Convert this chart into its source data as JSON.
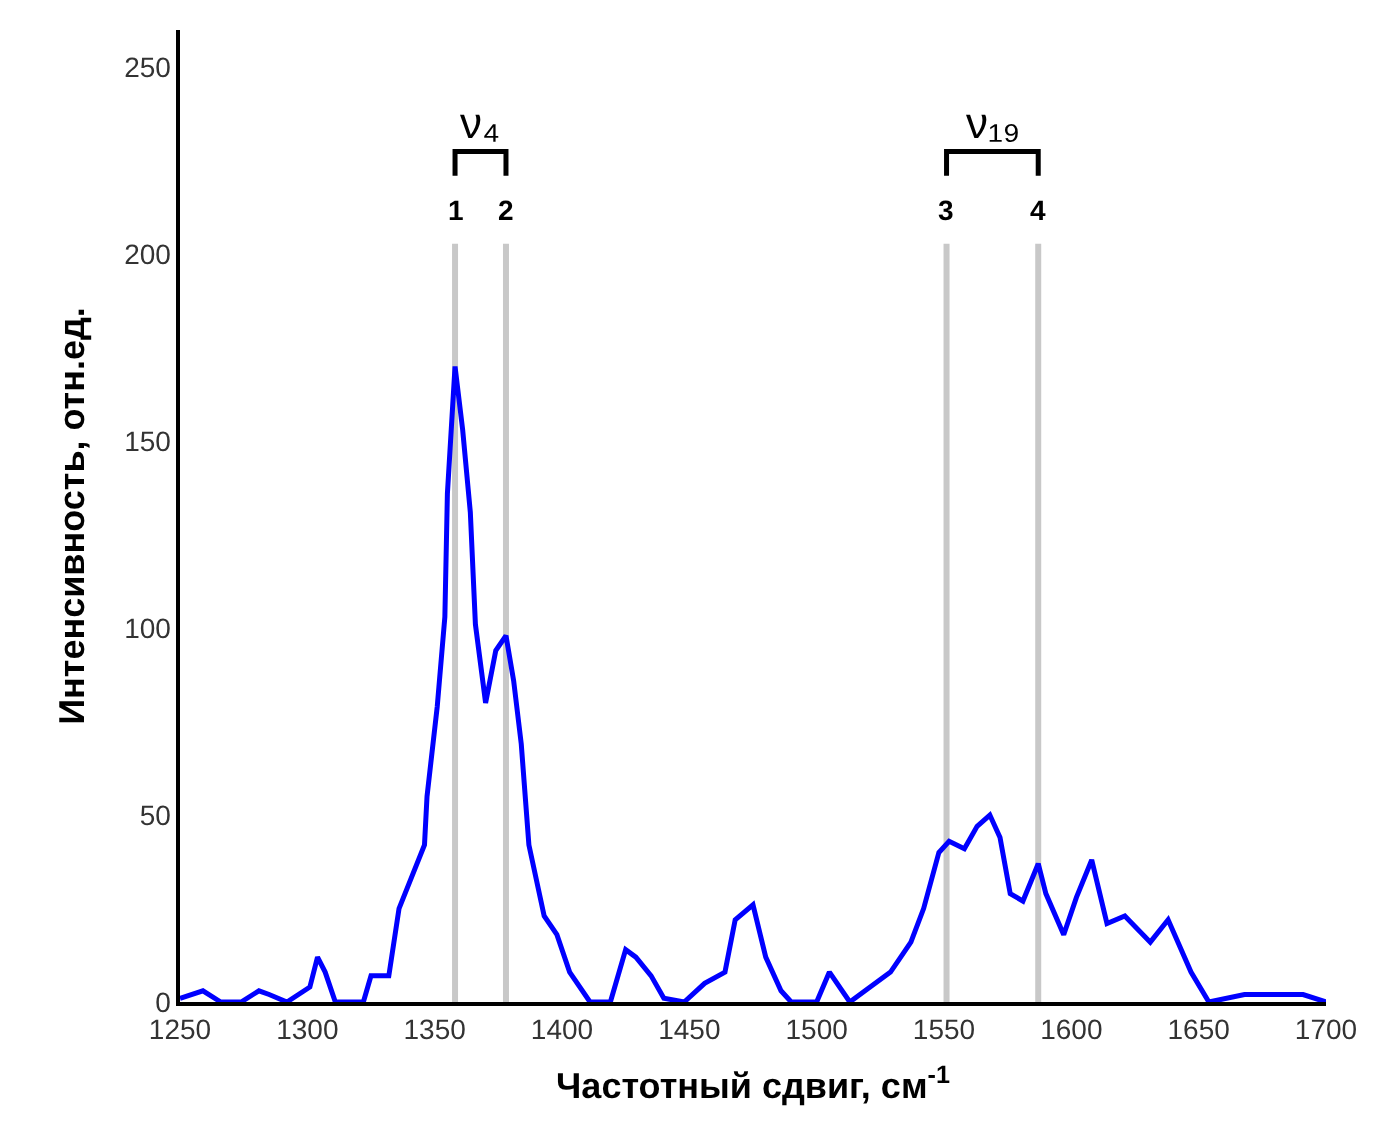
{
  "chart_data": {
    "type": "line",
    "xlabel": "Частотный сдвиг, см$^{-1}$",
    "ylabel": "Интенсивность, отн.ед.",
    "xlim": [
      1250,
      1700
    ],
    "xticks": [
      1250,
      1300,
      1350,
      1400,
      1450,
      1500,
      1550,
      1600,
      1650,
      1700
    ],
    "ylim": [
      0,
      260
    ],
    "yticks": [
      0,
      50,
      100,
      150,
      200,
      250
    ],
    "grid": false,
    "marker": "none",
    "line_style": "solid",
    "series": [
      {
        "color": "#0000ff",
        "x": [
          1250,
          1259,
          1266,
          1274,
          1281,
          1285,
          1292,
          1301,
          1304,
          1307,
          1311,
          1322,
          1325,
          1332,
          1336,
          1346,
          1347,
          1351,
          1354,
          1355,
          1358,
          1361,
          1364,
          1366,
          1370,
          1374,
          1378,
          1381,
          1384,
          1387,
          1393,
          1398,
          1403,
          1411,
          1419,
          1425,
          1429,
          1435,
          1440,
          1448,
          1456,
          1464,
          1468,
          1475,
          1480,
          1486,
          1490,
          1500,
          1505,
          1513,
          1519,
          1529,
          1537,
          1542,
          1548,
          1552,
          1558,
          1563,
          1568,
          1572,
          1576,
          1581,
          1587,
          1590,
          1597,
          1602,
          1608,
          1614,
          1621,
          1631,
          1638,
          1647,
          1654,
          1668,
          1684,
          1691,
          1700
        ],
        "values": [
          1,
          3,
          0,
          0,
          3,
          2,
          0,
          4,
          12,
          8,
          0,
          0,
          7,
          7,
          25,
          42,
          55,
          79,
          103,
          136,
          170,
          153,
          131,
          101,
          80,
          94,
          98,
          86,
          69,
          42,
          23,
          18,
          8,
          0,
          0,
          14,
          12,
          7,
          1,
          0,
          5,
          8,
          22,
          26,
          12,
          3,
          0,
          0,
          8,
          0,
          3,
          8,
          16,
          25,
          40,
          43,
          41,
          47,
          50,
          44,
          29,
          27,
          37,
          29,
          18,
          28,
          38,
          21,
          23,
          16,
          22,
          8,
          0,
          2,
          2,
          2,
          0
        ]
      }
    ],
    "ref_lines": [
      {
        "axis": "x",
        "value": 1358,
        "color": "#c8c8c8"
      },
      {
        "axis": "x",
        "value": 1378,
        "color": "#c8c8c8"
      },
      {
        "axis": "x",
        "value": 1551,
        "color": "#c8c8c8"
      },
      {
        "axis": "x",
        "value": 1587,
        "color": "#c8c8c8"
      }
    ],
    "annotations": [
      "ν₄",
      "ν₁₉",
      "1",
      "2",
      "3",
      "4"
    ]
  }
}
